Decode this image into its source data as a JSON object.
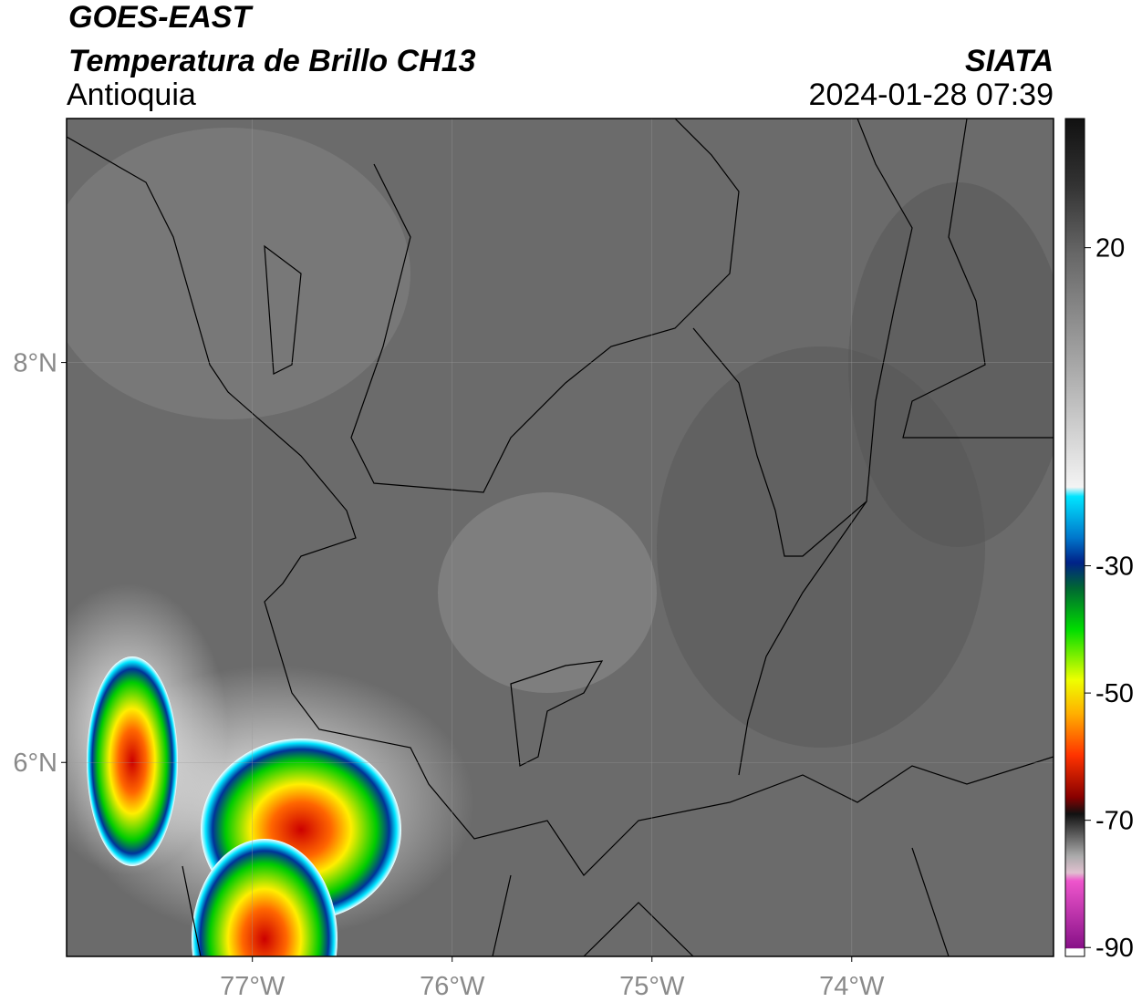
{
  "header": {
    "title": "GOES-EAST",
    "subtitle": "Temperatura de Brillo CH13",
    "region": "Antioquia",
    "source": "SIATA",
    "datetime": "2024-01-28 07:39"
  },
  "map": {
    "latlim": [
      5.03,
      9.22
    ],
    "lonlim": [
      -77.93,
      -72.99
    ],
    "lat_ticks": [
      {
        "value": 8,
        "label": "8°N"
      },
      {
        "value": 6,
        "label": "6°N"
      }
    ],
    "lon_ticks": [
      {
        "value": -77,
        "label": "77°W"
      },
      {
        "value": -76,
        "label": "76°W"
      },
      {
        "value": -75,
        "label": "75°W"
      },
      {
        "value": -74,
        "label": "74°W"
      }
    ]
  },
  "colorbar": {
    "lim": [
      -91.4,
      40.3
    ],
    "ticks": [
      20,
      -30,
      -50,
      -70,
      -90
    ]
  }
}
